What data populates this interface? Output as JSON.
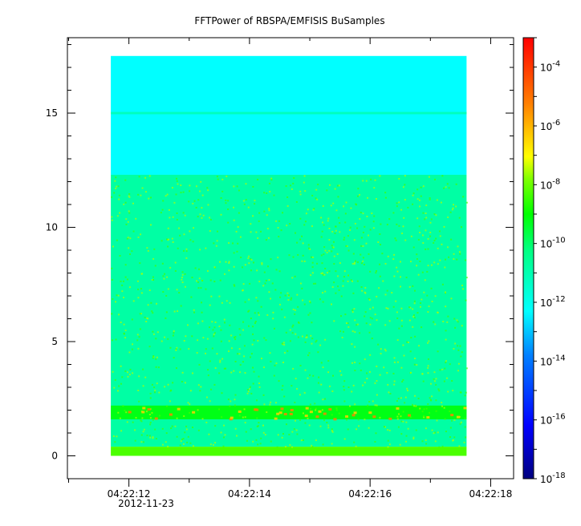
{
  "chart_data": {
    "type": "heatmap",
    "title": "FFTPower of RBSPA/EMFISIS  BuSamples",
    "xlabel": "",
    "ylabel": "",
    "x_ticks": [
      "04:22:12",
      "04:22:14",
      "04:22:16",
      "04:22:18"
    ],
    "x_sublabel": "2012-11-23",
    "x_range_seconds": [
      10.98,
      18.38
    ],
    "data_x_range_seconds": [
      11.7,
      17.6
    ],
    "y_ticks": [
      0,
      5,
      10,
      15
    ],
    "ylim": [
      -1,
      18.3
    ],
    "data_y_range": [
      0,
      17.5
    ],
    "colorbar": {
      "scale": "log",
      "range": [
        1e-18,
        0.001
      ],
      "tick_labels": [
        {
          "base": "10",
          "exp": "-4"
        },
        {
          "base": "10",
          "exp": "-6"
        },
        {
          "base": "10",
          "exp": "-8"
        },
        {
          "base": "10",
          "exp": "-10"
        },
        {
          "base": "10",
          "exp": "-12"
        },
        {
          "base": "10",
          "exp": "-14"
        },
        {
          "base": "10",
          "exp": "-16"
        },
        {
          "base": "10",
          "exp": "-18"
        }
      ],
      "tick_values_log10": [
        -4,
        -6,
        -8,
        -10,
        -12,
        -14,
        -16,
        -18
      ]
    },
    "bands": [
      {
        "y_from": 12.3,
        "y_to": 17.5,
        "log10_power": -12.3
      },
      {
        "y_from": 0.4,
        "y_to": 12.3,
        "log10_power": -10.8
      },
      {
        "y_from": 1.6,
        "y_to": 2.2,
        "log10_power": -9.2
      },
      {
        "y_from": 0,
        "y_to": 0.4,
        "log10_power": -8.3
      },
      {
        "y_from": 14.95,
        "y_to": 15.05,
        "log10_power": -11.2
      }
    ]
  }
}
